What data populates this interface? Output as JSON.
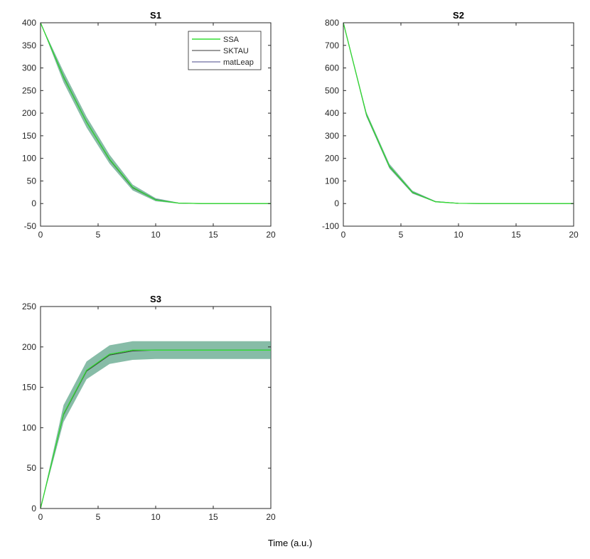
{
  "figure": {
    "xlabel": "Time (a.u.)",
    "colors": {
      "ssa": "#33dd33",
      "sktau": "#3a3a3a",
      "matleap": "#4a4a8a",
      "band": "#5fa58a",
      "axis": "#262626"
    }
  },
  "chart_data": [
    {
      "type": "line",
      "title": "S1",
      "x": [
        0,
        2,
        4,
        6,
        8,
        10,
        12,
        14,
        16,
        18,
        20
      ],
      "xlim": [
        0,
        20
      ],
      "ylim": [
        -50,
        400
      ],
      "xticks": [
        0,
        5,
        10,
        15,
        20
      ],
      "yticks": [
        -50,
        0,
        50,
        100,
        150,
        200,
        250,
        300,
        350,
        400
      ],
      "legend": {
        "position": "top-right",
        "entries": [
          "SSA",
          "SKTAU",
          "matLeap"
        ]
      },
      "series": [
        {
          "name": "SSA",
          "values": [
            400,
            280,
            180,
            98,
            36,
            8,
            1,
            0,
            0,
            0,
            0
          ]
        },
        {
          "name": "SKTAU",
          "values": [
            400,
            279,
            180,
            97,
            35,
            8,
            1,
            0,
            0,
            0,
            0
          ]
        },
        {
          "name": "matLeap",
          "values": [
            400,
            281,
            181,
            98,
            36,
            9,
            1,
            0,
            0,
            0,
            0
          ]
        }
      ],
      "band": {
        "lower": [
          400,
          268,
          168,
          88,
          29,
          5,
          0,
          0,
          0,
          0,
          0
        ],
        "upper": [
          400,
          292,
          192,
          108,
          42,
          12,
          2,
          0,
          0,
          0,
          0
        ]
      }
    },
    {
      "type": "line",
      "title": "S2",
      "x": [
        0,
        2,
        4,
        6,
        8,
        10,
        12,
        14,
        16,
        18,
        20
      ],
      "xlim": [
        0,
        20
      ],
      "ylim": [
        -100,
        800
      ],
      "xticks": [
        0,
        5,
        10,
        15,
        20
      ],
      "yticks": [
        -100,
        0,
        100,
        200,
        300,
        400,
        500,
        600,
        700,
        800
      ],
      "series": [
        {
          "name": "SSA",
          "values": [
            800,
            395,
            165,
            50,
            8,
            1,
            0,
            0,
            0,
            0,
            0
          ]
        },
        {
          "name": "SKTAU",
          "values": [
            800,
            393,
            163,
            49,
            8,
            1,
            0,
            0,
            0,
            0,
            0
          ]
        },
        {
          "name": "matLeap",
          "values": [
            800,
            396,
            166,
            51,
            9,
            1,
            0,
            0,
            0,
            0,
            0
          ]
        }
      ],
      "band": {
        "lower": [
          800,
          385,
          155,
          44,
          6,
          0,
          0,
          0,
          0,
          0,
          0
        ],
        "upper": [
          800,
          405,
          176,
          57,
          11,
          2,
          0,
          0,
          0,
          0,
          0
        ]
      }
    },
    {
      "type": "line",
      "title": "S3",
      "x": [
        0,
        2,
        4,
        6,
        8,
        10,
        12,
        14,
        16,
        18,
        20
      ],
      "xlim": [
        0,
        20
      ],
      "ylim": [
        0,
        250
      ],
      "xticks": [
        0,
        5,
        10,
        15,
        20
      ],
      "yticks": [
        0,
        50,
        100,
        150,
        200,
        250
      ],
      "series": [
        {
          "name": "SSA",
          "values": [
            0,
            117,
            171,
            191,
            196,
            196,
            196,
            196,
            196,
            196,
            196
          ]
        },
        {
          "name": "SKTAU",
          "values": [
            0,
            116,
            170,
            190,
            195,
            196,
            196,
            196,
            196,
            196,
            196
          ]
        },
        {
          "name": "matLeap",
          "values": [
            0,
            117,
            171,
            191,
            196,
            196,
            196,
            196,
            196,
            196,
            196
          ]
        }
      ],
      "band": {
        "lower": [
          0,
          107,
          160,
          179,
          184,
          185,
          185,
          185,
          185,
          185,
          185
        ],
        "upper": [
          0,
          128,
          182,
          202,
          207,
          207,
          207,
          207,
          207,
          207,
          207
        ]
      }
    }
  ]
}
